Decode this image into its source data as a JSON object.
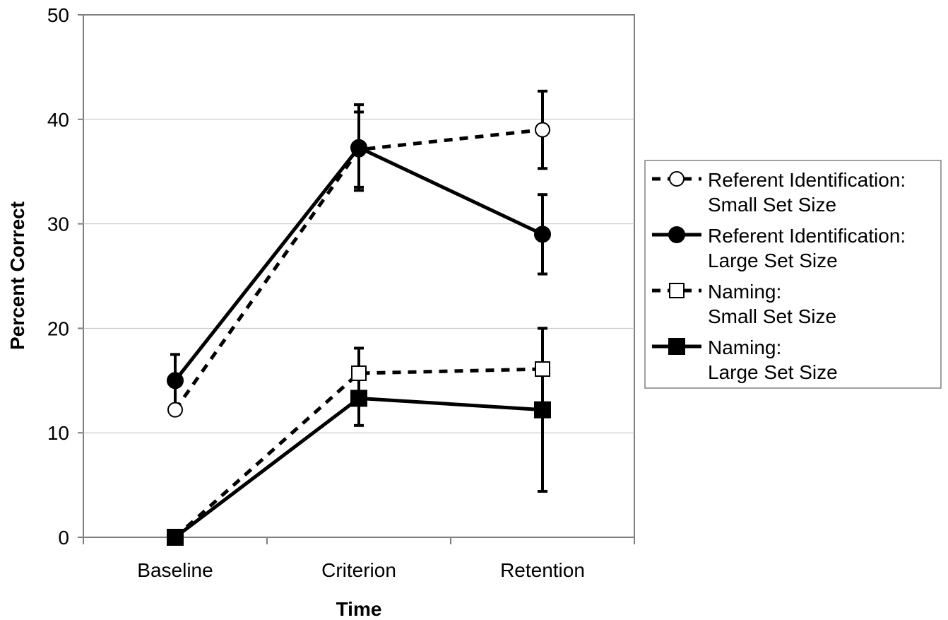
{
  "chart_data": {
    "type": "line",
    "title": "",
    "xlabel": "Time",
    "ylabel": "Percent Correct",
    "categories": [
      "Baseline",
      "Criterion",
      "Retention"
    ],
    "ylim": [
      0,
      50
    ],
    "yticks": [
      "0",
      "10",
      "20",
      "30",
      "40",
      "50"
    ],
    "grid": true,
    "legend_position": "right",
    "series": [
      {
        "name_line1": "Referent Identification:",
        "name_line2": "Small Set Size",
        "marker": "open-circle",
        "dash": "dashed",
        "values": [
          12.2,
          37.1,
          39.0
        ],
        "error": [
          null,
          3.6,
          3.7
        ]
      },
      {
        "name_line1": "Referent Identification:",
        "name_line2": "Large Set Size",
        "marker": "filled-circle",
        "dash": "solid",
        "values": [
          15.0,
          37.3,
          29.0
        ],
        "error": [
          2.5,
          4.1,
          3.8
        ]
      },
      {
        "name_line1": "Naming:",
        "name_line2": "Small Set Size",
        "marker": "open-square",
        "dash": "dashed",
        "values": [
          0,
          15.7,
          16.1
        ],
        "error": [
          null,
          null,
          null
        ]
      },
      {
        "name_line1": "Naming:",
        "name_line2": "Large Set Size",
        "marker": "filled-square",
        "dash": "solid",
        "values": [
          0,
          13.3,
          12.2
        ],
        "error": [
          null,
          2.6,
          7.8
        ]
      }
    ],
    "extra_error_bars": [
      {
        "series": 2,
        "index": 1,
        "low": 15.7,
        "high": 18.1
      },
      {
        "series": 2,
        "index": 2,
        "low": 16.1,
        "high": 20.0
      }
    ]
  }
}
